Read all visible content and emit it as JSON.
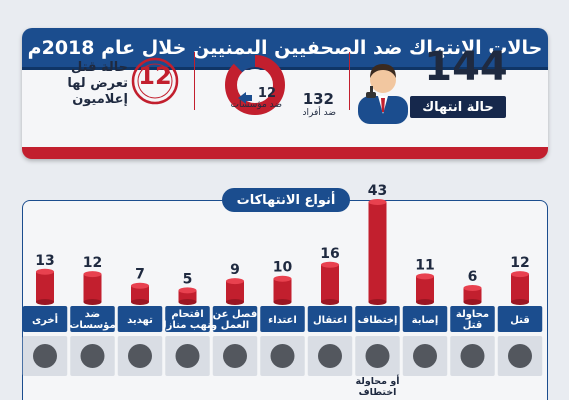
{
  "header": {
    "title": "حالات الانتهاك ضد الصحفيين اليمنيين خلال عام 2018م"
  },
  "summary": {
    "total_value": "144",
    "total_label": "حالة انتهاك",
    "against_individuals_value": "132",
    "against_individuals_label": "ضد أفراد",
    "against_institutions_value": "12",
    "against_institutions_label": "ضد مؤسسات",
    "killed_value": "12",
    "killed_label_lines": [
      "حالة قتل",
      "تعرض لها",
      "إعلاميون"
    ]
  },
  "chart_data": {
    "type": "bar",
    "title": "أنواع الانتهاكات",
    "categories": [
      "قتل",
      "محاولة قتل",
      "إصابة",
      "إختطاف",
      "اعتقال",
      "اعتداء",
      "فصل عن العمل",
      "اقتحام ونهب منازل",
      "تهديد",
      "ضد مؤسسات",
      "أخرى"
    ],
    "category_lines": [
      [
        "قتل"
      ],
      [
        "محاولة",
        "قتل"
      ],
      [
        "إصابة"
      ],
      [
        "إختطاف"
      ],
      [
        "اعتقال"
      ],
      [
        "اعتداء"
      ],
      [
        "فصل عن",
        "العمل"
      ],
      [
        "اقتحام",
        "ونهب منازل"
      ],
      [
        "تهديد"
      ],
      [
        "ضد",
        "مؤسسات"
      ],
      [
        "أخرى"
      ]
    ],
    "values": [
      12,
      6,
      11,
      43,
      16,
      10,
      9,
      5,
      7,
      12,
      13
    ],
    "icons": [
      "gun-victim-icon",
      "rifle-soldier-icon",
      "injured-person-icon",
      "masked-kidnapper-icon",
      "prison-bars-icon",
      "attack-baton-icon",
      "briefcase-icon",
      "padlock-icon",
      "threat-figure-icon",
      "building-icon",
      "prohibited-icon"
    ],
    "icon_sublabel_lines": [
      "أو محاولة",
      "اختطاف"
    ],
    "colors": {
      "bar": "#c21f2e",
      "bar_top": "#e8414f",
      "label_bg": "#1b4d8e",
      "icon_bg": "#d9dde4"
    }
  }
}
